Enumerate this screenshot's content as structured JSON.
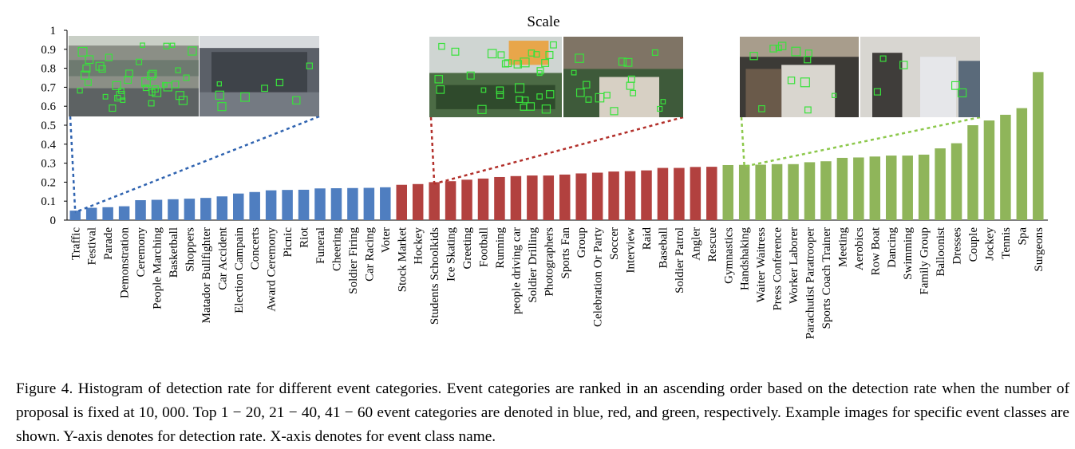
{
  "chart_data": {
    "type": "bar",
    "title": "Scale",
    "xlabel": "",
    "ylabel": "",
    "ylim": [
      0,
      1
    ],
    "yticks": [
      "0",
      "0.1",
      "0.2",
      "0.3",
      "0.4",
      "0.5",
      "0.6",
      "0.7",
      "0.8",
      "0.9",
      "1"
    ],
    "grid": false,
    "groups": [
      {
        "range": [
          0,
          19
        ],
        "color": "#4f7ec0"
      },
      {
        "range": [
          20,
          39
        ],
        "color": "#b2413f"
      },
      {
        "range": [
          40,
          59
        ],
        "color": "#8fb55a"
      }
    ],
    "categories": [
      "Traffic",
      "Festival",
      "Parade",
      "Demonstration",
      "Ceremony",
      "People Marching",
      "Basketball",
      "Shoppers",
      "Matador Bullfighter",
      "Car Accident",
      "Election Campain",
      "Concerts",
      "Award Ceremony",
      "Picnic",
      "Riot",
      "Funeral",
      "Cheering",
      "Soldier Firing",
      "Car Racing",
      "Voter",
      "Stock Market",
      "Hockey",
      "Students Schoolkids",
      "Ice Skating",
      "Greeting",
      "Football",
      "Running",
      "people driving car",
      "Soldier Drilling",
      "Photographers",
      "Sports Fan",
      "Group",
      "Celebration Or Party",
      "Soccer",
      "Interview",
      "Raid",
      "Baseball",
      "Soldier Patrol",
      "Angler",
      "Rescue",
      "Gymnastics",
      "Handshaking",
      "Waiter Waitress",
      "Press Conference",
      "Worker Laborer",
      "Parachutist Paratrooper",
      "Sports Coach Trainer",
      "Meeting",
      "Aerobics",
      "Row Boat",
      "Dancing",
      "Swimming",
      "Family Group",
      "Balloonist",
      "Dresses",
      "Couple",
      "Jockey",
      "Tennis",
      "Spa",
      "Surgeons"
    ],
    "values": [
      0.05,
      0.065,
      0.068,
      0.073,
      0.105,
      0.107,
      0.11,
      0.113,
      0.117,
      0.125,
      0.14,
      0.148,
      0.157,
      0.159,
      0.16,
      0.167,
      0.168,
      0.169,
      0.17,
      0.173,
      0.186,
      0.19,
      0.2,
      0.205,
      0.213,
      0.219,
      0.227,
      0.232,
      0.235,
      0.235,
      0.24,
      0.246,
      0.25,
      0.256,
      0.258,
      0.262,
      0.275,
      0.275,
      0.28,
      0.281,
      0.29,
      0.291,
      0.292,
      0.295,
      0.295,
      0.305,
      0.31,
      0.328,
      0.33,
      0.335,
      0.34,
      0.34,
      0.345,
      0.378,
      0.405,
      0.5,
      0.525,
      0.555,
      0.59,
      0.78
    ]
  },
  "insets": [
    {
      "name": "traffic-example-images",
      "target_category": "Traffic",
      "line_color": "#2f63b0"
    },
    {
      "name": "students-schoolkids-example-images",
      "target_category": "Students Schoolkids",
      "line_color": "#b22f2a"
    },
    {
      "name": "handshaking-example-images",
      "target_category": "Handshaking",
      "line_color": "#8cc84b"
    }
  ],
  "caption": "Figure 4. Histogram of detection rate for different event categories. Event categories are ranked in an ascending order based on the detection rate when the number of proposal is fixed at 10, 000. Top 1 − 20, 21 − 40, 41 − 60 event categories are denoted in blue, red, and green, respectively. Example images for specific event classes are shown. Y-axis denotes for detection rate. X-axis denotes for event class name."
}
